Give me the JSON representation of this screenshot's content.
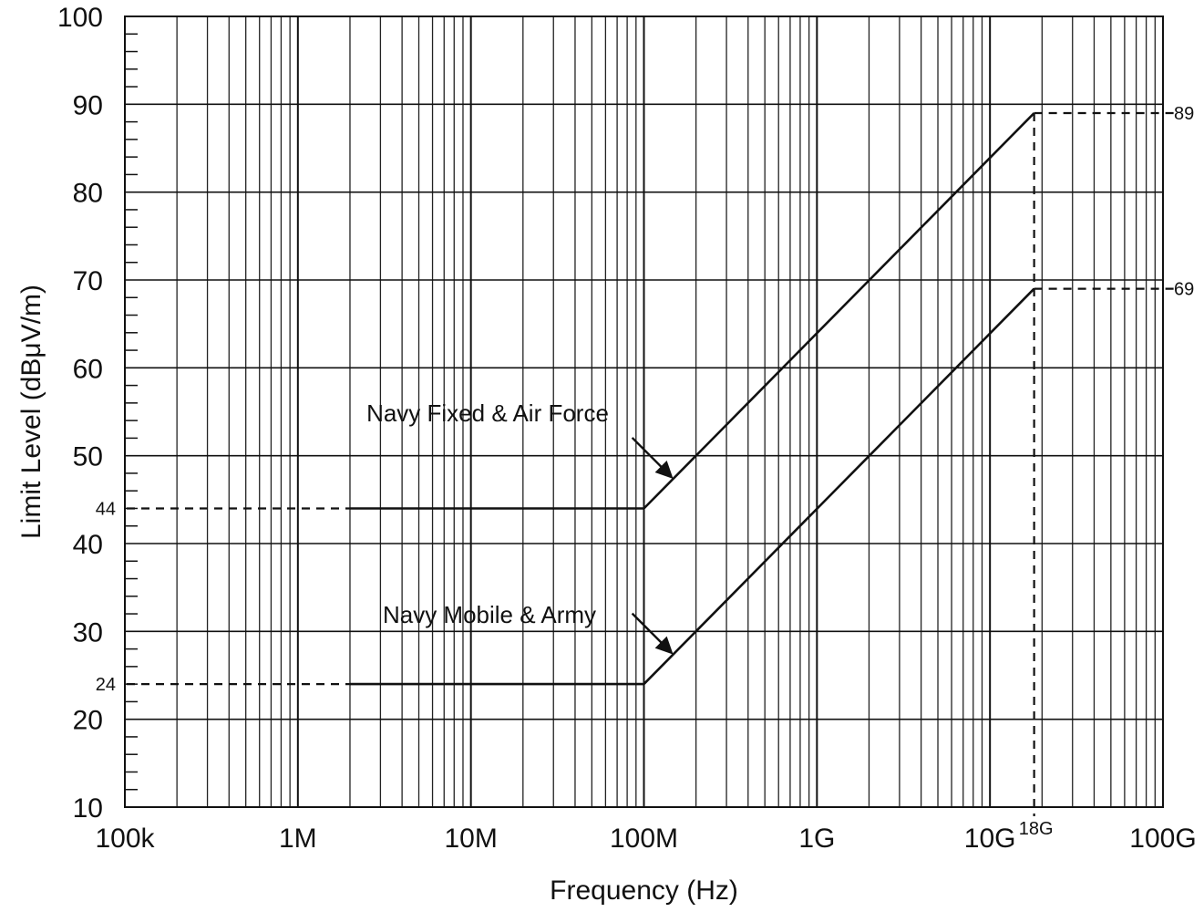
{
  "chart_data": {
    "type": "line",
    "xlabel": "Frequency (Hz)",
    "ylabel": "Limit Level (dBμV/m)",
    "x_scale": "log",
    "xlim": [
      100000,
      100000000000
    ],
    "ylim": [
      10,
      100
    ],
    "x_ticks": [
      {
        "value": 100000,
        "label": "100k"
      },
      {
        "value": 1000000,
        "label": "1M"
      },
      {
        "value": 10000000,
        "label": "10M"
      },
      {
        "value": 100000000,
        "label": "100M"
      },
      {
        "value": 1000000000,
        "label": "1G"
      },
      {
        "value": 10000000000,
        "label": "10G"
      },
      {
        "value": 100000000000,
        "label": "100G"
      }
    ],
    "y_ticks": [
      10,
      20,
      30,
      40,
      50,
      60,
      70,
      80,
      90,
      100
    ],
    "grid": true,
    "series": [
      {
        "name": "Navy Fixed & Air Force",
        "points": [
          [
            2000000,
            44
          ],
          [
            100000000,
            44
          ],
          [
            18000000000,
            89
          ]
        ],
        "extension_start": [
          100000,
          44
        ]
      },
      {
        "name": "Navy Mobile & Army",
        "points": [
          [
            2000000,
            24
          ],
          [
            100000000,
            24
          ],
          [
            18000000000,
            69
          ]
        ],
        "extension_start": [
          100000,
          24
        ]
      }
    ],
    "reference_labels": {
      "left": [
        {
          "y": 44,
          "label": "44"
        },
        {
          "y": 24,
          "label": "24"
        }
      ],
      "right": [
        {
          "y": 89,
          "label": "89"
        },
        {
          "y": 69,
          "label": "69"
        }
      ],
      "bottom": {
        "x": 18000000000,
        "label": "18G"
      }
    },
    "annotations": [
      {
        "text": "Navy Fixed & Air Force",
        "series": 0
      },
      {
        "text": "Navy Mobile & Army",
        "series": 1
      }
    ]
  }
}
